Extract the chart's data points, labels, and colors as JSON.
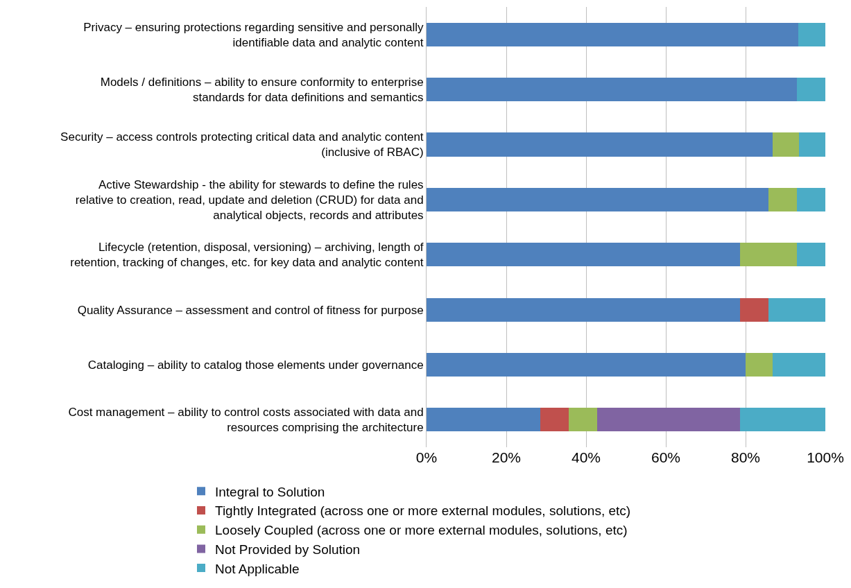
{
  "chart_data": {
    "type": "bar",
    "orientation": "horizontal",
    "stacked": true,
    "categories": [
      "Privacy – ensuring protections regarding sensitive and personally identifiable data and analytic content",
      "Models / definitions – ability to ensure conformity to enterprise standards for data definitions and semantics",
      "Security – access controls protecting critical data and analytic content (inclusive of RBAC)",
      "Active Stewardship - the ability for stewards to define the rules relative to creation, read, update and deletion (CRUD) for data and analytical objects, records and attributes",
      "Lifecycle (retention, disposal, versioning) – archiving, length of retention, tracking of changes, etc. for key data and analytic content",
      "Quality Assurance – assessment and control of fitness for purpose",
      "Cataloging – ability to catalog those elements under governance",
      "Cost management – ability to control costs associated with data and resources comprising the architecture"
    ],
    "series": [
      {
        "name": "Integral to Solution",
        "color": "#4f81bd",
        "values": [
          93.3,
          92.9,
          86.7,
          85.7,
          78.6,
          78.6,
          80,
          28.6
        ]
      },
      {
        "name": "Tightly Integrated (across one or more external modules, solutions, etc)",
        "color": "#c0504d",
        "values": [
          null,
          null,
          null,
          null,
          null,
          7.1,
          null,
          7.1
        ]
      },
      {
        "name": "Loosely Coupled (across one or more external modules, solutions, etc)",
        "color": "#9bbb59",
        "values": [
          null,
          null,
          6.7,
          7.2,
          14.3,
          null,
          6.7,
          7.1
        ]
      },
      {
        "name": "Not Provided by Solution",
        "color": "#8064a2",
        "values": [
          null,
          null,
          null,
          null,
          null,
          null,
          null,
          35.8
        ]
      },
      {
        "name": "Not Applicable",
        "color": "#4bacc6",
        "values": [
          6.7,
          7.1,
          6.6,
          7.1,
          7.1,
          14.3,
          13.3,
          21.4
        ]
      }
    ],
    "xlim": [
      0,
      100
    ],
    "xticks": [
      {
        "value": 0,
        "label": "0%"
      },
      {
        "value": 20,
        "label": "20%"
      },
      {
        "value": 40,
        "label": "40%"
      },
      {
        "value": 60,
        "label": "60%"
      },
      {
        "value": 80,
        "label": "80%"
      },
      {
        "value": 100,
        "label": "100%"
      }
    ],
    "grid": "x",
    "legend": "bottom"
  }
}
